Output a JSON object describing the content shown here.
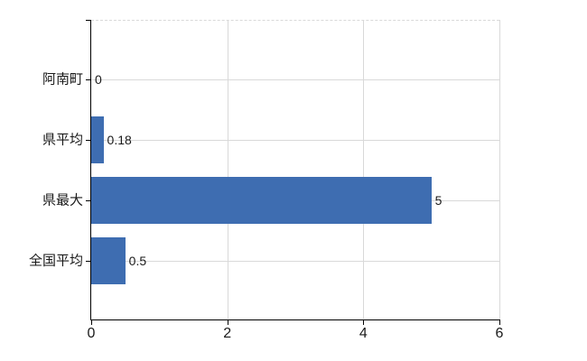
{
  "chart_data": {
    "type": "bar",
    "orientation": "horizontal",
    "title": "",
    "categories": [
      "阿南町",
      "県平均",
      "県最大",
      "全国平均"
    ],
    "values": [
      0,
      0.18,
      5,
      0.5
    ],
    "value_labels": [
      "0",
      "0.18",
      "5",
      "0.5"
    ],
    "xlim": [
      0,
      6
    ],
    "x_ticks": [
      0,
      2,
      4,
      6
    ],
    "x_tick_labels": [
      "0",
      "2",
      "4",
      "6"
    ],
    "grid": true,
    "legend": false,
    "colors": {
      "bar": "#3e6db1",
      "gridline": "#d9d9d9",
      "axis": "#000000",
      "text": "#1a1a1a",
      "background": "#ffffff"
    }
  }
}
